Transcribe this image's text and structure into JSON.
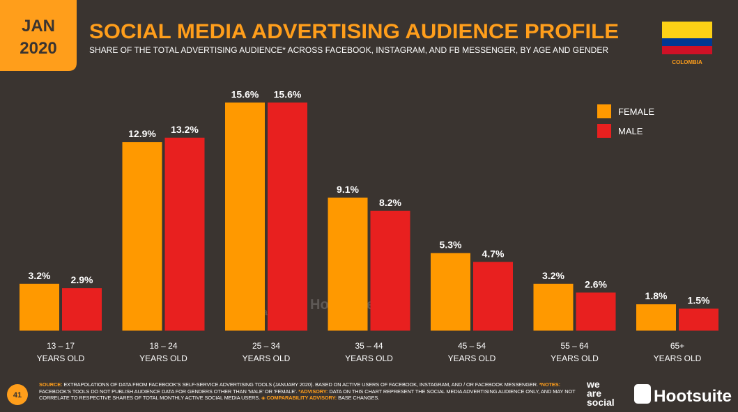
{
  "chart_data": {
    "type": "bar",
    "badge": [
      "JAN",
      "2020"
    ],
    "title": "SOCIAL MEDIA ADVERTISING AUDIENCE PROFILE",
    "subtitle": "SHARE OF THE TOTAL ADVERTISING AUDIENCE* ACROSS FACEBOOK, INSTAGRAM, AND FB MESSENGER, BY AGE AND GENDER",
    "country": "COLOMBIA",
    "categories": [
      "13 – 17",
      "18 – 24",
      "25 – 34",
      "35 – 44",
      "45 – 54",
      "55 – 64",
      "65+"
    ],
    "category_sublabel": "YEARS OLD",
    "series": [
      {
        "name": "FEMALE",
        "color": "#ff9900",
        "values": [
          3.2,
          12.9,
          15.6,
          9.1,
          5.3,
          3.2,
          1.8
        ],
        "value_labels": [
          "3.2%",
          "12.9%",
          "15.6%",
          "9.1%",
          "5.3%",
          "3.2%",
          "1.8%"
        ]
      },
      {
        "name": "MALE",
        "color": "#e8201f",
        "values": [
          2.9,
          13.2,
          15.6,
          8.2,
          4.7,
          2.6,
          1.5
        ],
        "value_labels": [
          "2.9%",
          "13.2%",
          "15.6%",
          "8.2%",
          "4.7%",
          "2.6%",
          "1.5%"
        ]
      }
    ],
    "ylim": [
      0,
      16
    ],
    "legend": "top-right",
    "page_number": "41",
    "footer": [
      {
        "text": "SOURCE:",
        "emphasis": true
      },
      {
        "text": " EXTRAPOLATIONS OF DATA FROM FACEBOOK'S SELF-SERVICE ADVERTISING TOOLS (JANUARY 2020). BASED ON ACTIVE USERS OF FACEBOOK, INSTAGRAM, AND / OR FACEBOOK MESSENGER. ",
        "emphasis": false
      },
      {
        "text": "*NOTES:",
        "emphasis": true
      },
      {
        "text": " FACEBOOK'S TOOLS DO NOT PUBLISH AUDIENCE DATA FOR GENDERS OTHER THAN 'MALE' OR 'FEMALE'. ",
        "emphasis": false
      },
      {
        "text": "*ADVISORY:",
        "emphasis": true
      },
      {
        "text": " DATA ON THIS CHART REPRESENT THE SOCIAL MEDIA ADVERTISING AUDIENCE ONLY, AND MAY NOT CORRELATE TO RESPECTIVE SHARES OF TOTAL MONTHLY ACTIVE SOCIAL MEDIA USERS. ",
        "emphasis": false
      },
      {
        "text": "◈ COMPARABILITY ADVISORY:",
        "emphasis": true
      },
      {
        "text": " BASE CHANGES.",
        "emphasis": false
      }
    ],
    "logos": {
      "we_are_social": [
        "we",
        "are",
        "social"
      ],
      "hootsuite": "Hootsuite"
    }
  }
}
